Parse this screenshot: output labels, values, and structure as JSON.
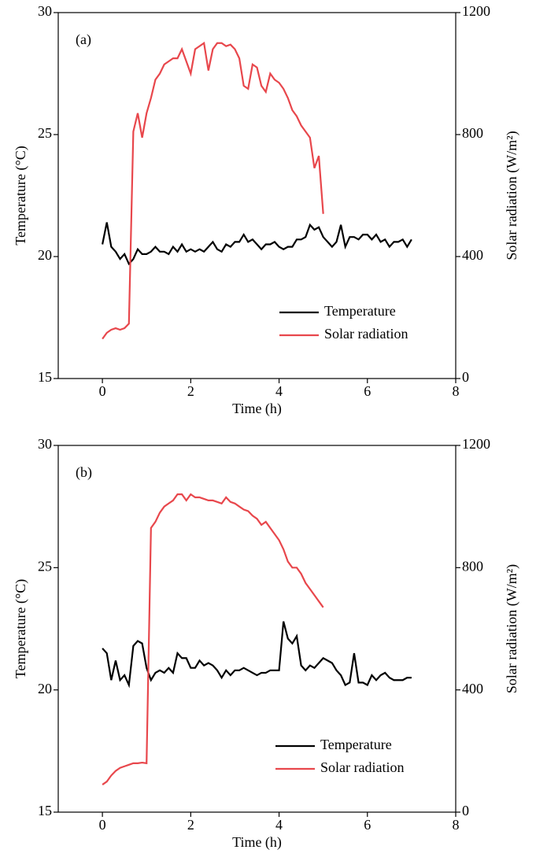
{
  "chart_data": [
    {
      "type": "line",
      "annotation": "(a)",
      "xlabel": "Time (h)",
      "ylabel": "Temperature (°C)",
      "y2label": "Solar radiation (W/m²)",
      "xlim": [
        -1,
        8
      ],
      "xticks": [
        0,
        2,
        4,
        6,
        8
      ],
      "ylim": [
        15,
        30
      ],
      "yticks": [
        15,
        20,
        25,
        30
      ],
      "y2lim": [
        0,
        1200
      ],
      "y2ticks": [
        0,
        400,
        800,
        1200
      ],
      "legend": "lower right",
      "series": [
        {
          "name": "Temperature",
          "color": "#000000",
          "x": [
            0,
            0.1,
            0.2,
            0.3,
            0.4,
            0.5,
            0.6,
            0.7,
            0.8,
            0.9,
            1,
            1.1,
            1.2,
            1.3,
            1.4,
            1.5,
            1.6,
            1.7,
            1.8,
            1.9,
            2,
            2.1,
            2.2,
            2.3,
            2.4,
            2.5,
            2.6,
            2.7,
            2.8,
            2.9,
            3,
            3.1,
            3.2,
            3.3,
            3.4,
            3.5,
            3.6,
            3.7,
            3.8,
            3.9,
            4,
            4.1,
            4.2,
            4.3,
            4.4,
            4.5,
            4.6,
            4.7,
            4.8,
            4.9,
            5,
            5.1,
            5.2,
            5.3,
            5.4,
            5.5,
            5.6,
            5.7,
            5.8,
            5.9,
            6,
            6.1,
            6.2,
            6.3,
            6.4,
            6.5,
            6.6,
            6.7,
            6.8,
            6.9,
            7
          ],
          "values": [
            20.5,
            21.4,
            20.4,
            20.2,
            19.9,
            20.1,
            19.7,
            19.9,
            20.3,
            20.1,
            20.1,
            20.2,
            20.4,
            20.2,
            20.2,
            20.1,
            20.4,
            20.2,
            20.5,
            20.2,
            20.3,
            20.2,
            20.3,
            20.2,
            20.4,
            20.6,
            20.3,
            20.2,
            20.5,
            20.4,
            20.6,
            20.6,
            20.9,
            20.6,
            20.7,
            20.5,
            20.3,
            20.5,
            20.5,
            20.6,
            20.4,
            20.3,
            20.4,
            20.4,
            20.7,
            20.7,
            20.8,
            21.3,
            21.1,
            21.2,
            20.8,
            20.6,
            20.4,
            20.6,
            21.3,
            20.4,
            20.8,
            20.8,
            20.7,
            20.9,
            20.9,
            20.7,
            20.9,
            20.6,
            20.7,
            20.4,
            20.6,
            20.6,
            20.7,
            20.4,
            20.7
          ]
        },
        {
          "name": "Solar radiation",
          "color": "#e8474c",
          "axis": "y2",
          "x": [
            0,
            0.1,
            0.2,
            0.3,
            0.4,
            0.5,
            0.6,
            0.7,
            0.8,
            0.9,
            1,
            1.1,
            1.2,
            1.3,
            1.4,
            1.5,
            1.6,
            1.7,
            1.8,
            1.9,
            2,
            2.1,
            2.2,
            2.3,
            2.4,
            2.5,
            2.6,
            2.7,
            2.8,
            2.9,
            3,
            3.1,
            3.2,
            3.3,
            3.4,
            3.5,
            3.6,
            3.7,
            3.8,
            3.9,
            4,
            4.1,
            4.2,
            4.3,
            4.4,
            4.5,
            4.6,
            4.7,
            4.8,
            4.9,
            5
          ],
          "values": [
            130,
            150,
            160,
            165,
            160,
            165,
            180,
            810,
            870,
            790,
            870,
            920,
            980,
            1000,
            1030,
            1040,
            1050,
            1050,
            1080,
            1040,
            1000,
            1080,
            1090,
            1100,
            1010,
            1080,
            1100,
            1100,
            1090,
            1095,
            1080,
            1050,
            960,
            950,
            1030,
            1020,
            960,
            940,
            1000,
            980,
            970,
            950,
            920,
            880,
            860,
            830,
            810,
            790,
            690,
            730,
            540
          ]
        }
      ]
    },
    {
      "type": "line",
      "annotation": "(b)",
      "xlabel": "Time (h)",
      "ylabel": "Temperature (°C)",
      "y2label": "Solar radiation (W/m²)",
      "xlim": [
        -1,
        8
      ],
      "xticks": [
        0,
        2,
        4,
        6,
        8
      ],
      "ylim": [
        15,
        30
      ],
      "yticks": [
        15,
        20,
        25,
        30
      ],
      "y2lim": [
        0,
        1200
      ],
      "y2ticks": [
        0,
        400,
        800,
        1200
      ],
      "legend": "lower right",
      "series": [
        {
          "name": "Temperature",
          "color": "#000000",
          "x": [
            0,
            0.1,
            0.2,
            0.3,
            0.4,
            0.5,
            0.6,
            0.7,
            0.8,
            0.9,
            1,
            1.1,
            1.2,
            1.3,
            1.4,
            1.5,
            1.6,
            1.7,
            1.8,
            1.9,
            2,
            2.1,
            2.2,
            2.3,
            2.4,
            2.5,
            2.6,
            2.7,
            2.8,
            2.9,
            3,
            3.1,
            3.2,
            3.3,
            3.4,
            3.5,
            3.6,
            3.7,
            3.8,
            3.9,
            4,
            4.1,
            4.2,
            4.3,
            4.4,
            4.5,
            4.6,
            4.7,
            4.8,
            4.9,
            5,
            5.1,
            5.2,
            5.3,
            5.4,
            5.5,
            5.6,
            5.7,
            5.8,
            5.9,
            6,
            6.1,
            6.2,
            6.3,
            6.4,
            6.5,
            6.6,
            6.7,
            6.8,
            6.9,
            7
          ],
          "values": [
            21.7,
            21.5,
            20.4,
            21.2,
            20.4,
            20.6,
            20.2,
            21.8,
            22.0,
            21.9,
            20.9,
            20.4,
            20.7,
            20.8,
            20.7,
            20.9,
            20.7,
            21.5,
            21.3,
            21.3,
            20.9,
            20.9,
            21.2,
            21.0,
            21.1,
            21.0,
            20.8,
            20.5,
            20.8,
            20.6,
            20.8,
            20.8,
            20.9,
            20.8,
            20.7,
            20.6,
            20.7,
            20.7,
            20.8,
            20.8,
            20.8,
            22.8,
            22.1,
            21.9,
            22.2,
            21.0,
            20.8,
            21.0,
            20.9,
            21.1,
            21.3,
            21.2,
            21.1,
            20.8,
            20.6,
            20.2,
            20.3,
            21.5,
            20.3,
            20.3,
            20.2,
            20.6,
            20.4,
            20.6,
            20.7,
            20.5,
            20.4,
            20.4,
            20.4,
            20.5,
            20.5
          ]
        },
        {
          "name": "Solar radiation",
          "color": "#e8474c",
          "axis": "y2",
          "x": [
            0,
            0.1,
            0.2,
            0.3,
            0.4,
            0.5,
            0.6,
            0.7,
            0.8,
            0.9,
            1,
            1.1,
            1.2,
            1.3,
            1.4,
            1.5,
            1.6,
            1.7,
            1.8,
            1.9,
            2,
            2.1,
            2.2,
            2.3,
            2.4,
            2.5,
            2.6,
            2.7,
            2.8,
            2.9,
            3,
            3.1,
            3.2,
            3.3,
            3.4,
            3.5,
            3.6,
            3.7,
            3.8,
            3.9,
            4,
            4.1,
            4.2,
            4.3,
            4.4,
            4.5,
            4.6,
            4.7,
            4.8,
            4.9,
            5
          ],
          "values": [
            90,
            100,
            120,
            135,
            145,
            150,
            155,
            160,
            160,
            162,
            160,
            930,
            950,
            980,
            1000,
            1010,
            1020,
            1040,
            1040,
            1020,
            1040,
            1030,
            1030,
            1025,
            1020,
            1020,
            1015,
            1010,
            1030,
            1015,
            1010,
            1000,
            990,
            985,
            970,
            960,
            940,
            950,
            930,
            910,
            890,
            860,
            820,
            800,
            800,
            780,
            750,
            730,
            710,
            690,
            670
          ]
        }
      ]
    }
  ]
}
